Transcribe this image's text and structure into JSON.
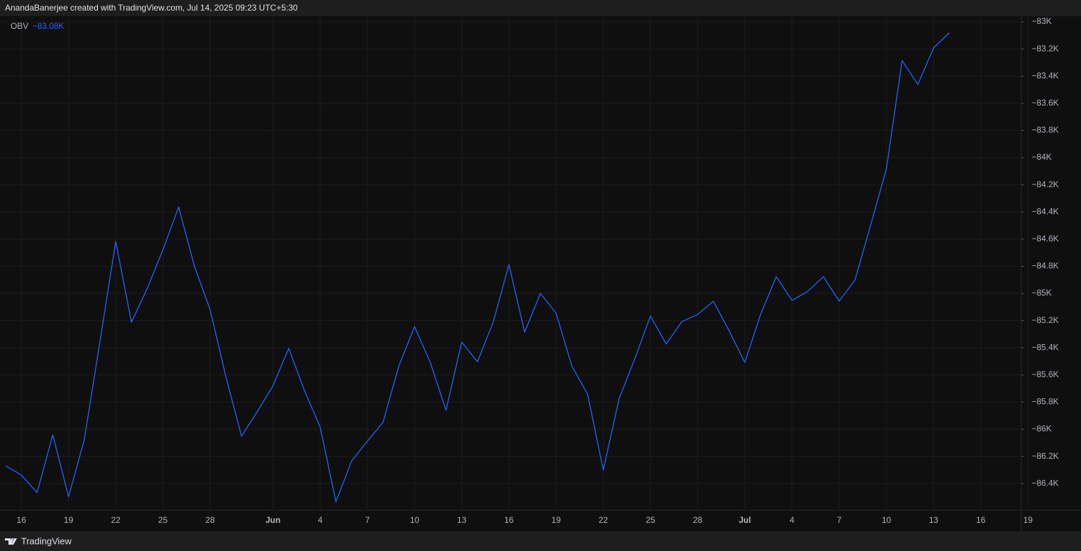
{
  "chart_data": {
    "type": "line",
    "title": "AnandaBanerjee created with TradingView.com, Jul 14, 2025 09:23 UTC+5:30",
    "footer": "TradingView",
    "x": [
      "May 15",
      "May 16",
      "May 17",
      "May 18",
      "May 19",
      "May 20",
      "May 21",
      "May 22",
      "May 23",
      "May 24",
      "May 25",
      "May 26",
      "May 27",
      "May 28",
      "May 29",
      "May 30",
      "May 31",
      "Jun 1",
      "Jun 2",
      "Jun 3",
      "Jun 4",
      "Jun 5",
      "Jun 6",
      "Jun 7",
      "Jun 8",
      "Jun 9",
      "Jun 10",
      "Jun 11",
      "Jun 12",
      "Jun 13",
      "Jun 14",
      "Jun 15",
      "Jun 16",
      "Jun 17",
      "Jun 18",
      "Jun 19",
      "Jun 20",
      "Jun 21",
      "Jun 22",
      "Jun 23",
      "Jun 24",
      "Jun 25",
      "Jun 26",
      "Jun 27",
      "Jun 28",
      "Jun 29",
      "Jun 30",
      "Jul 1",
      "Jul 2",
      "Jul 3",
      "Jul 4",
      "Jul 5",
      "Jul 6",
      "Jul 7",
      "Jul 8",
      "Jul 9",
      "Jul 10",
      "Jul 11",
      "Jul 12",
      "Jul 13",
      "Jul 14"
    ],
    "series": [
      {
        "name": "OBV",
        "color": "#2962ff",
        "values": [
          -86269,
          -86337,
          -86466,
          -86041,
          -86497,
          -86078,
          -85352,
          -84617,
          -85212,
          -84964,
          -84679,
          -84363,
          -84798,
          -85119,
          -85611,
          -86052,
          -85870,
          -85679,
          -85404,
          -85715,
          -85984,
          -86534,
          -86233,
          -86088,
          -85948,
          -85534,
          -85244,
          -85508,
          -85860,
          -85358,
          -85503,
          -85212,
          -84788,
          -85285,
          -85000,
          -85145,
          -85534,
          -85741,
          -86301,
          -85777,
          -85482,
          -85166,
          -85373,
          -85207,
          -85155,
          -85057,
          -85275,
          -85508,
          -85155,
          -84876,
          -85052,
          -84984,
          -84876,
          -85057,
          -84902,
          -84497,
          -84083,
          -83285,
          -83461,
          -83192,
          -83080
        ],
        "value_labels": [
          null,
          null,
          null,
          null,
          null,
          null,
          null,
          null,
          null,
          null,
          null,
          null,
          null,
          null,
          null,
          null,
          null,
          null,
          null,
          null,
          null,
          null,
          null,
          null,
          null,
          null,
          null,
          null,
          null,
          null,
          null,
          null,
          null,
          null,
          null,
          null,
          null,
          null,
          null,
          null,
          null,
          null,
          null,
          null,
          null,
          null,
          null,
          null,
          null,
          null,
          null,
          null,
          null,
          null,
          null,
          null,
          null,
          null,
          null,
          null,
          "−83.08K"
        ]
      }
    ],
    "ylim": [
      -86596,
      -82953
    ],
    "yticks": [
      {
        "value": -83000,
        "label": "−83K"
      },
      {
        "value": -83200,
        "label": "−83.2K"
      },
      {
        "value": -83400,
        "label": "−83.4K"
      },
      {
        "value": -83600,
        "label": "−83.6K"
      },
      {
        "value": -83800,
        "label": "−83.8K"
      },
      {
        "value": -84000,
        "label": "−84K"
      },
      {
        "value": -84200,
        "label": "−84.2K"
      },
      {
        "value": -84400,
        "label": "−84.4K"
      },
      {
        "value": -84600,
        "label": "−84.6K"
      },
      {
        "value": -84800,
        "label": "−84.8K"
      },
      {
        "value": -85000,
        "label": "−85K"
      },
      {
        "value": -85200,
        "label": "−85.2K"
      },
      {
        "value": -85400,
        "label": "−85.4K"
      },
      {
        "value": -85600,
        "label": "−85.6K"
      },
      {
        "value": -85800,
        "label": "−85.8K"
      },
      {
        "value": -86000,
        "label": "−86K"
      },
      {
        "value": -86200,
        "label": "−86.2K"
      },
      {
        "value": -86400,
        "label": "−86.4K"
      }
    ],
    "xticks": [
      {
        "value": "May 16",
        "label": "16"
      },
      {
        "value": "May 19",
        "label": "19"
      },
      {
        "value": "May 22",
        "label": "22"
      },
      {
        "value": "May 25",
        "label": "25"
      },
      {
        "value": "May 28",
        "label": "28"
      },
      {
        "value": "Jun 1",
        "label": "Jun"
      },
      {
        "value": "Jun 4",
        "label": "4"
      },
      {
        "value": "Jun 7",
        "label": "7"
      },
      {
        "value": "Jun 10",
        "label": "10"
      },
      {
        "value": "Jun 13",
        "label": "13"
      },
      {
        "value": "Jun 16",
        "label": "16"
      },
      {
        "value": "Jun 19",
        "label": "19"
      },
      {
        "value": "Jun 22",
        "label": "22"
      },
      {
        "value": "Jun 25",
        "label": "25"
      },
      {
        "value": "Jun 28",
        "label": "28"
      },
      {
        "value": "Jul 1",
        "label": "Jul"
      },
      {
        "value": "Jul 4",
        "label": "4"
      },
      {
        "value": "Jul 7",
        "label": "7"
      },
      {
        "value": "Jul 10",
        "label": "10"
      },
      {
        "value": "Jul 13",
        "label": "13"
      },
      {
        "value": "Jul 16",
        "label": "16"
      },
      {
        "value": "Jul 19",
        "label": "19"
      }
    ],
    "grid": true
  }
}
